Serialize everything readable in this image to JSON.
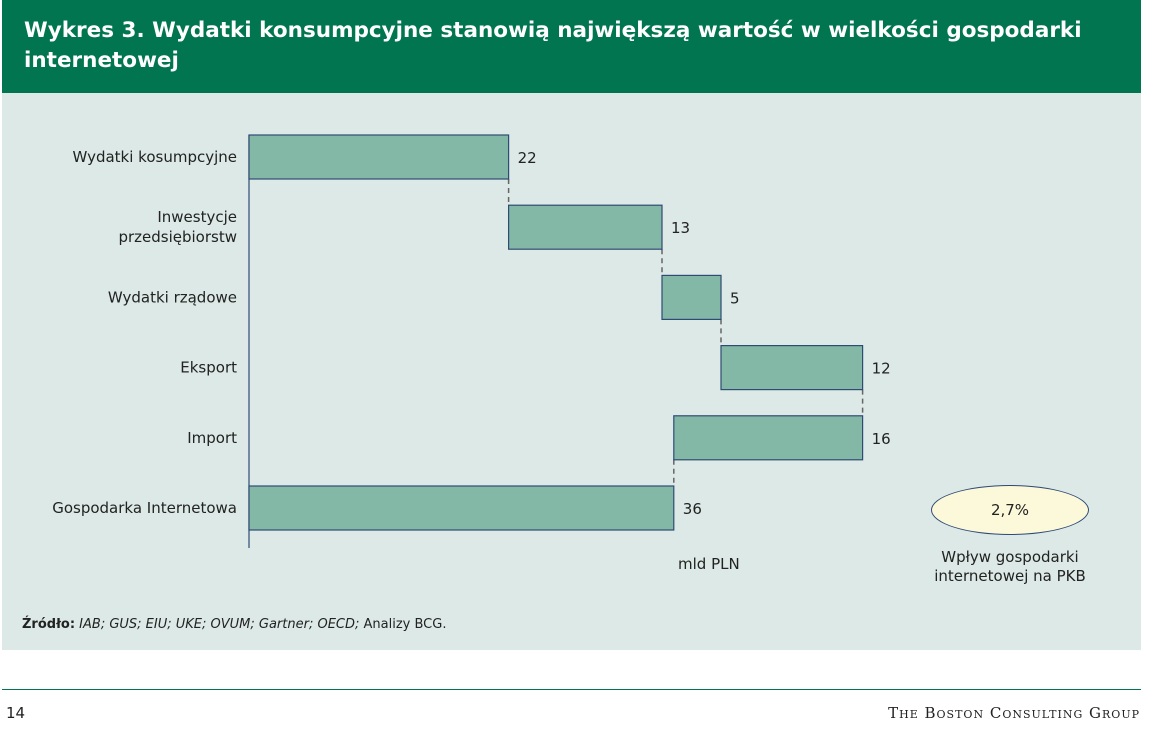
{
  "header": {
    "title": "Wykres 3. Wydatki konsumpcyjne stanowią największą wartość w wielkości gospodarki internetowej"
  },
  "chart_data": {
    "type": "bar",
    "subtype": "waterfall",
    "orientation": "horizontal",
    "categories": [
      "Wydatki kosumpcyjne",
      "Inwestycje\nprzedsiębiorstw",
      "Wydatki rządowe",
      "Eksport",
      "Import",
      "Gospodarka Internetowa"
    ],
    "values": [
      22,
      13,
      5,
      12,
      16,
      36
    ],
    "start": [
      0,
      22,
      35,
      40,
      36,
      0
    ],
    "end": [
      22,
      35,
      40,
      52,
      52,
      36
    ],
    "value_labels": [
      "22",
      "13",
      "5",
      "12",
      "16",
      "36"
    ],
    "xlabel": "mld PLN",
    "xlim": [
      0,
      52
    ],
    "grid": false,
    "connectors": "dashed",
    "bar_color": "#84b8a6",
    "bar_edge_color": "#2f4a75"
  },
  "impact": {
    "value": "2,7%",
    "caption_line1": "Wpływ gospodarki",
    "caption_line2": "internetowej na PKB",
    "fill_color": "#fcf8da"
  },
  "source": {
    "label": "Źródło:",
    "list": "IAB; GUS; EIU; UKE; OVUM; Gartner; OECD;",
    "rest": " Analizy BCG."
  },
  "footer": {
    "page_number": "14",
    "brand": "The Boston Consulting Group"
  },
  "colors": {
    "header_bg": "#00754f",
    "panel_bg": "#dce9e6"
  }
}
